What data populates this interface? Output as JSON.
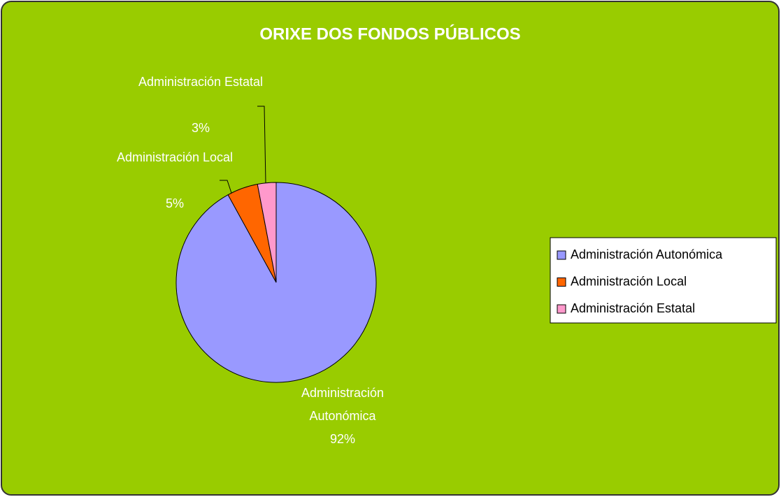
{
  "chart_data": {
    "type": "pie",
    "title": "ORIXE DOS FONDOS PÚBLICOS",
    "categories": [
      "Administración Autonómica",
      "Administración Local",
      "Administración Estatal"
    ],
    "values": [
      92,
      5,
      3
    ],
    "value_labels": [
      "92%",
      "5%",
      "3%"
    ],
    "colors": [
      "#9999ff",
      "#ff6600",
      "#ff99cc"
    ],
    "legend": "right"
  }
}
